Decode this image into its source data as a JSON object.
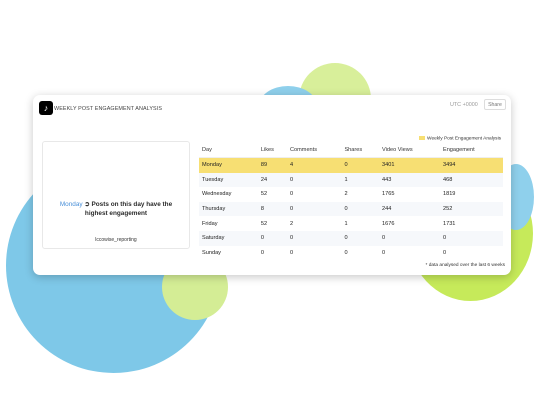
{
  "header": {
    "title": "WEEKLY POST ENGAGEMENT ANALYSIS",
    "logo_glyph": "♪",
    "timezone": "UTC +0000",
    "share_label": "Share"
  },
  "legend": {
    "label": "Weekly Post Engagement Analysis",
    "color": "#f7df73"
  },
  "summary": {
    "highlight_day": "Monday",
    "icon": "circle-arrow-icon",
    "icon_glyph": "➲",
    "message": "Posts on this day have the highest engagement",
    "handle": "lccowise_reporting"
  },
  "table": {
    "columns": [
      "Day",
      "Likes",
      "Comments",
      "Shares",
      "Video Views",
      "Engagement"
    ],
    "rows": [
      [
        "Monday",
        "89",
        "4",
        "0",
        "3401",
        "3494"
      ],
      [
        "Tuesday",
        "24",
        "0",
        "1",
        "443",
        "468"
      ],
      [
        "Wednesday",
        "52",
        "0",
        "2",
        "1765",
        "1819"
      ],
      [
        "Thursday",
        "8",
        "0",
        "0",
        "244",
        "252"
      ],
      [
        "Friday",
        "52",
        "2",
        "1",
        "1676",
        "1731"
      ],
      [
        "Saturday",
        "0",
        "0",
        "0",
        "0",
        "0"
      ],
      [
        "Sunday",
        "0",
        "0",
        "0",
        "0",
        "0"
      ]
    ],
    "highlight_row": 0
  },
  "footnote": "* data analysed over the last 6 weeks",
  "colors": {
    "highlight": "#f7df73",
    "accent_blue": "#7ec8e8",
    "accent_lime": "#c6ea5a"
  }
}
